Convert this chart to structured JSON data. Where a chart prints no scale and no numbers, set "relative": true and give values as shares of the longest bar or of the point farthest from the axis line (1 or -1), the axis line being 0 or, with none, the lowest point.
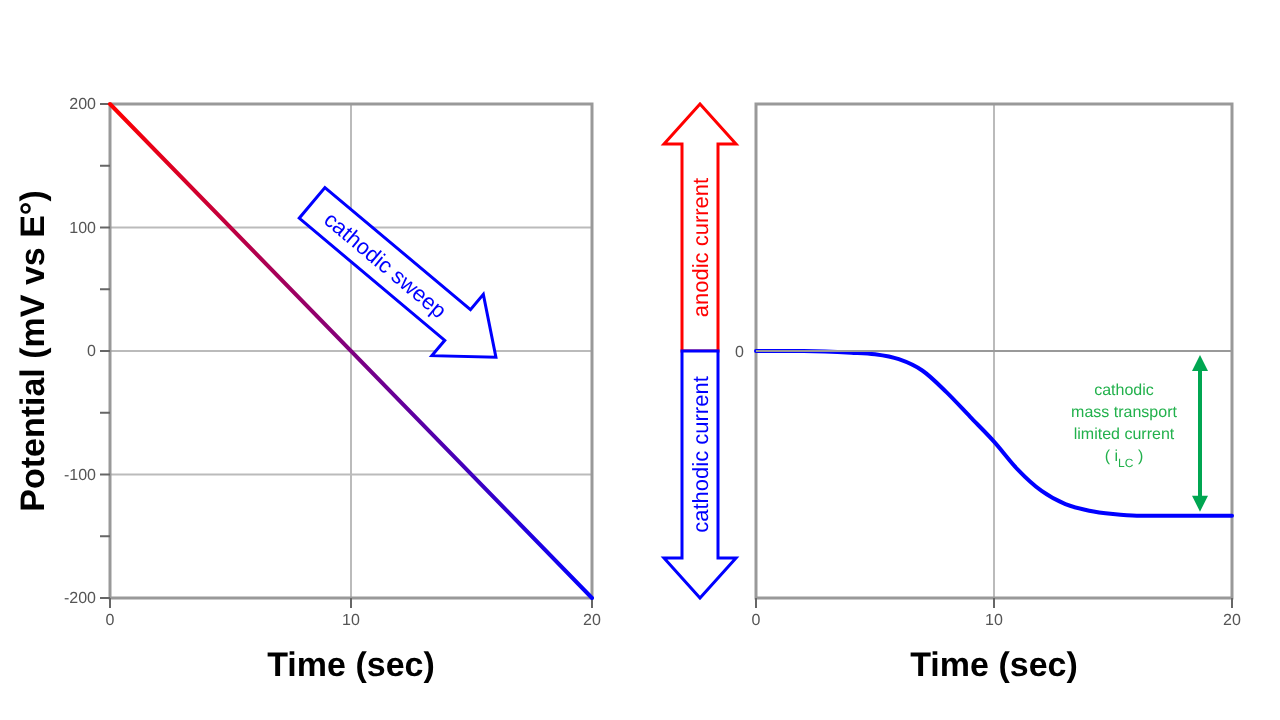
{
  "chart_data": [
    {
      "type": "line",
      "xlabel": "Time (sec)",
      "ylabel": "Potential (mV vs E°)",
      "x": [
        0,
        20
      ],
      "series": [
        {
          "values": [
            200,
            -200
          ],
          "colors": [
            "#ff0000",
            "#0000ff"
          ]
        }
      ],
      "xlim": [
        0,
        20
      ],
      "ylim": [
        -200,
        200
      ],
      "xticks": [
        0,
        10,
        20
      ],
      "yticks": [
        -200,
        {
          "value": -150,
          "label": null
        },
        -100,
        {
          "value": -50,
          "label": null
        },
        0,
        {
          "value": 50,
          "label": null
        },
        100,
        {
          "value": 150,
          "label": null
        },
        200
      ],
      "grid": true,
      "annotations": [
        "cathodic sweep"
      ]
    },
    {
      "type": "line",
      "xlabel": "Time (sec)",
      "relative": true,
      "x": [
        0,
        2,
        4,
        5,
        6,
        7,
        8,
        9,
        10,
        11,
        12,
        13,
        14,
        15,
        16,
        18,
        20
      ],
      "series": [
        {
          "color": "#0000ff",
          "values": [
            0,
            0,
            -0.01,
            -0.02,
            -0.05,
            -0.12,
            -0.25,
            -0.4,
            -0.55,
            -0.72,
            -0.85,
            -0.93,
            -0.97,
            -0.99,
            -1,
            -1,
            -1
          ]
        }
      ],
      "xlim": [
        0,
        20
      ],
      "xticks": [
        0,
        10,
        20
      ],
      "grid": "x",
      "ref_lines": [
        {
          "axis": "y",
          "value": 0,
          "label": "0"
        }
      ],
      "annotations": [
        "anodic current",
        "cathodic current",
        "cathodic\nmass transport\nlimited current\n( i$_{LC}$ )"
      ]
    }
  ]
}
